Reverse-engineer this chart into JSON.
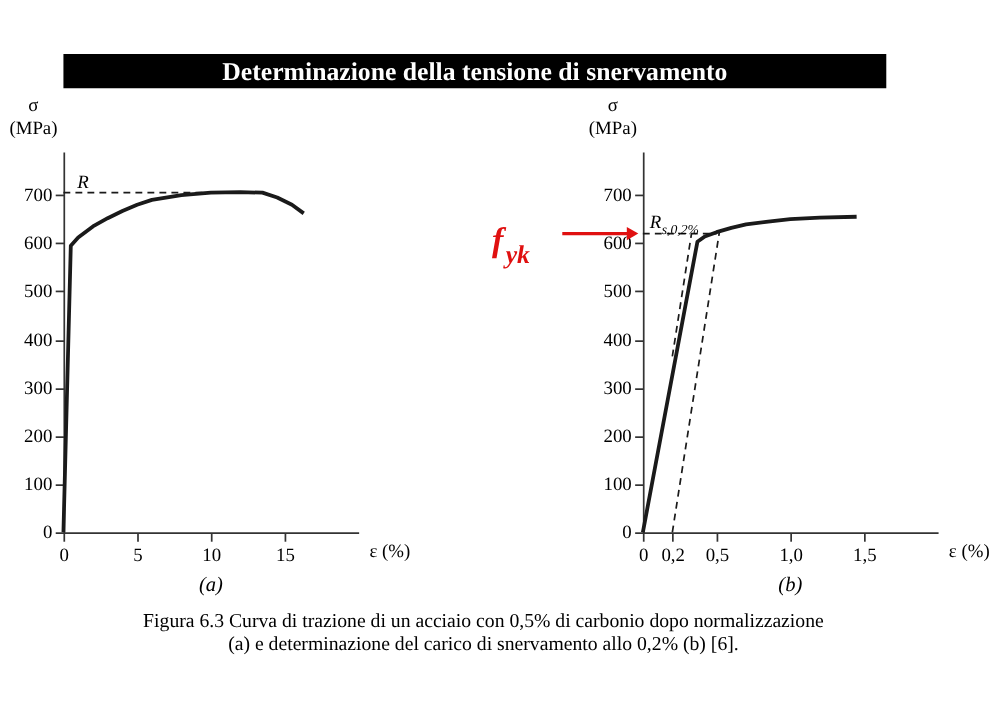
{
  "chart_data": [
    {
      "type": "line",
      "title": "Determinazione della tensione di snervamento",
      "xlabel": "ε (%)",
      "ylabel": "σ (MPa)",
      "grid": false,
      "xlim": [
        0,
        20
      ],
      "xticks": [
        0,
        5,
        10,
        15
      ],
      "ylim": [
        0,
        790
      ],
      "yticks": [
        0,
        100,
        200,
        300,
        400,
        500,
        600,
        700
      ],
      "series": [
        {
          "color": "#1a1a1a",
          "line_style": "solid",
          "x": [
            0,
            0.5,
            1,
            2,
            3,
            4,
            5,
            6,
            8,
            10,
            12,
            13.5,
            14.5,
            15.5,
            16.3
          ],
          "values": [
            0,
            595,
            612,
            635,
            652,
            667,
            680,
            690,
            700,
            705,
            706,
            705,
            695,
            680,
            662
          ]
        }
      ],
      "ref_lines": [
        {
          "axis": "y",
          "value": 705,
          "label": "R",
          "line_style": "dashed",
          "color": "#1a1a1a"
        }
      ],
      "annotations": [
        "(a)"
      ]
    },
    {
      "type": "line",
      "xlabel": "ε (%)",
      "ylabel": "σ (MPa)",
      "grid": false,
      "xlim": [
        0,
        2.0
      ],
      "xticks": [
        0,
        {
          "value": 0.2,
          "label": "0,2"
        },
        {
          "value": 0.5,
          "label": "0,5"
        },
        {
          "value": 1.0,
          "label": "1,0"
        },
        {
          "value": 1.5,
          "label": "1,5"
        }
      ],
      "ylim": [
        0,
        790
      ],
      "yticks": [
        0,
        100,
        200,
        300,
        400,
        500,
        600,
        700
      ],
      "series": [
        {
          "color": "#1a1a1a",
          "line_style": "solid",
          "x": [
            0,
            0.37,
            0.42,
            0.5,
            0.6,
            0.7,
            0.85,
            1.0,
            1.2,
            1.45
          ],
          "values": [
            0,
            603,
            614,
            623,
            632,
            639,
            645,
            650,
            653,
            655
          ]
        },
        {
          "color": "#1a1a1a",
          "line_style": "dashed",
          "x": [
            0.2,
            0.52
          ],
          "values": [
            0,
            625
          ]
        },
        {
          "color": "#1a1a1a",
          "line_style": "dashed",
          "x": [
            0.2,
            0.33
          ],
          "values": [
            365,
            620
          ]
        }
      ],
      "ref_lines": [
        {
          "axis": "y",
          "value": 620,
          "label": "R$_{s,0,2%}$",
          "line_style": "dashed",
          "color": "#1a1a1a"
        }
      ],
      "annotations": [
        "(b)",
        {
          "text": "f$_{yk}$",
          "x": 0,
          "y": 620
        },
        "Figura 6.3 Curva di trazione di un acciaio con 0,5% di carbonio dopo normalizzazione (a) e determinazione del carico di snervamento allo 0,2% (b) [6]."
      ]
    }
  ]
}
